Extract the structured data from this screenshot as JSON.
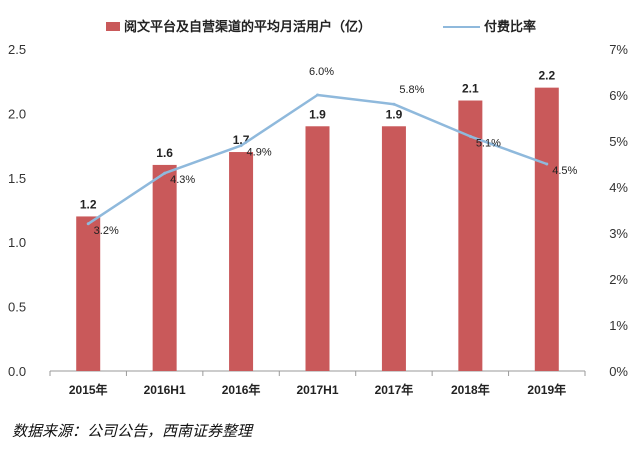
{
  "chart_data": {
    "type": "bar",
    "categories": [
      "2015年",
      "2016H1",
      "2016年",
      "2017H1",
      "2017年",
      "2018年",
      "2019年"
    ],
    "series": [
      {
        "name": "阅文平台及自营渠道的平均月活用户（亿）",
        "type": "bar",
        "axis": "left",
        "color": "#c9595a",
        "values": [
          1.2,
          1.6,
          1.7,
          1.9,
          1.9,
          2.1,
          2.2
        ],
        "value_labels": [
          "1.2",
          "1.6",
          "1.7",
          "1.9",
          "1.9",
          "2.1",
          "2.2"
        ]
      },
      {
        "name": "付费比率",
        "type": "line",
        "axis": "right",
        "color": "#8fb9dc",
        "values": [
          3.2,
          4.3,
          4.9,
          6.0,
          5.8,
          5.1,
          4.5
        ],
        "value_labels": [
          "3.2%",
          "4.3%",
          "4.9%",
          "6.0%",
          "5.8%",
          "5.1%",
          "4.5%"
        ]
      }
    ],
    "left_axis": {
      "ylim": [
        0,
        2.5
      ],
      "ticks": [
        "0.0",
        "0.5",
        "1.0",
        "1.5",
        "2.0",
        "2.5"
      ]
    },
    "right_axis": {
      "ylim": [
        0,
        7
      ],
      "ticks": [
        "0%",
        "1%",
        "2%",
        "3%",
        "4%",
        "5%",
        "6%",
        "7%"
      ]
    },
    "grid": false,
    "legend_position": "top",
    "source": "数据来源：公司公告，西南证券整理"
  }
}
